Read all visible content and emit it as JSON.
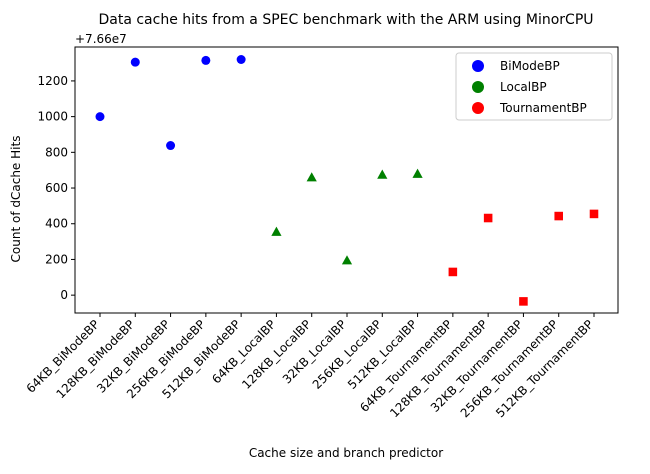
{
  "chart_data": {
    "type": "scatter",
    "title": "Data cache hits from a SPEC benchmark with the ARM using MinorCPU",
    "xlabel": "Cache size and branch predictor",
    "ylabel": "Count of dCache Hits",
    "offset_label": "+7.66e7",
    "categories": [
      "64KB_BiModeBP",
      "128KB_BiModeBP",
      "32KB_BiModeBP",
      "256KB_BiModeBP",
      "512KB_BiModeBP",
      "64KB_LocalBP",
      "128KB_LocalBP",
      "32KB_LocalBP",
      "256KB_LocalBP",
      "512KB_LocalBP",
      "64KB_TournamentBP",
      "128KB_TournamentBP",
      "32KB_TournamentBP",
      "256KB_TournamentBP",
      "512KB_TournamentBP"
    ],
    "ylim": [
      -100,
      1390
    ],
    "yticks": [
      0,
      200,
      400,
      600,
      800,
      1000,
      1200
    ],
    "ytick_labels": [
      "0",
      "200",
      "400",
      "600",
      "800",
      "1000",
      "1200"
    ],
    "grid": false,
    "legend_position": "top-right",
    "series": [
      {
        "name": "BiModeBP",
        "color": "#0000ff",
        "marker": "circle",
        "x_index": [
          0,
          1,
          2,
          3,
          4
        ],
        "values": [
          1000,
          1305,
          838,
          1315,
          1320
        ]
      },
      {
        "name": "LocalBP",
        "color": "#008000",
        "marker": "triangle",
        "x_index": [
          5,
          6,
          7,
          8,
          9
        ],
        "values": [
          355,
          660,
          195,
          675,
          680
        ]
      },
      {
        "name": "TournamentBP",
        "color": "#ff0000",
        "marker": "square",
        "x_index": [
          10,
          11,
          12,
          13,
          14
        ],
        "values": [
          130,
          432,
          -35,
          443,
          455
        ]
      }
    ]
  }
}
